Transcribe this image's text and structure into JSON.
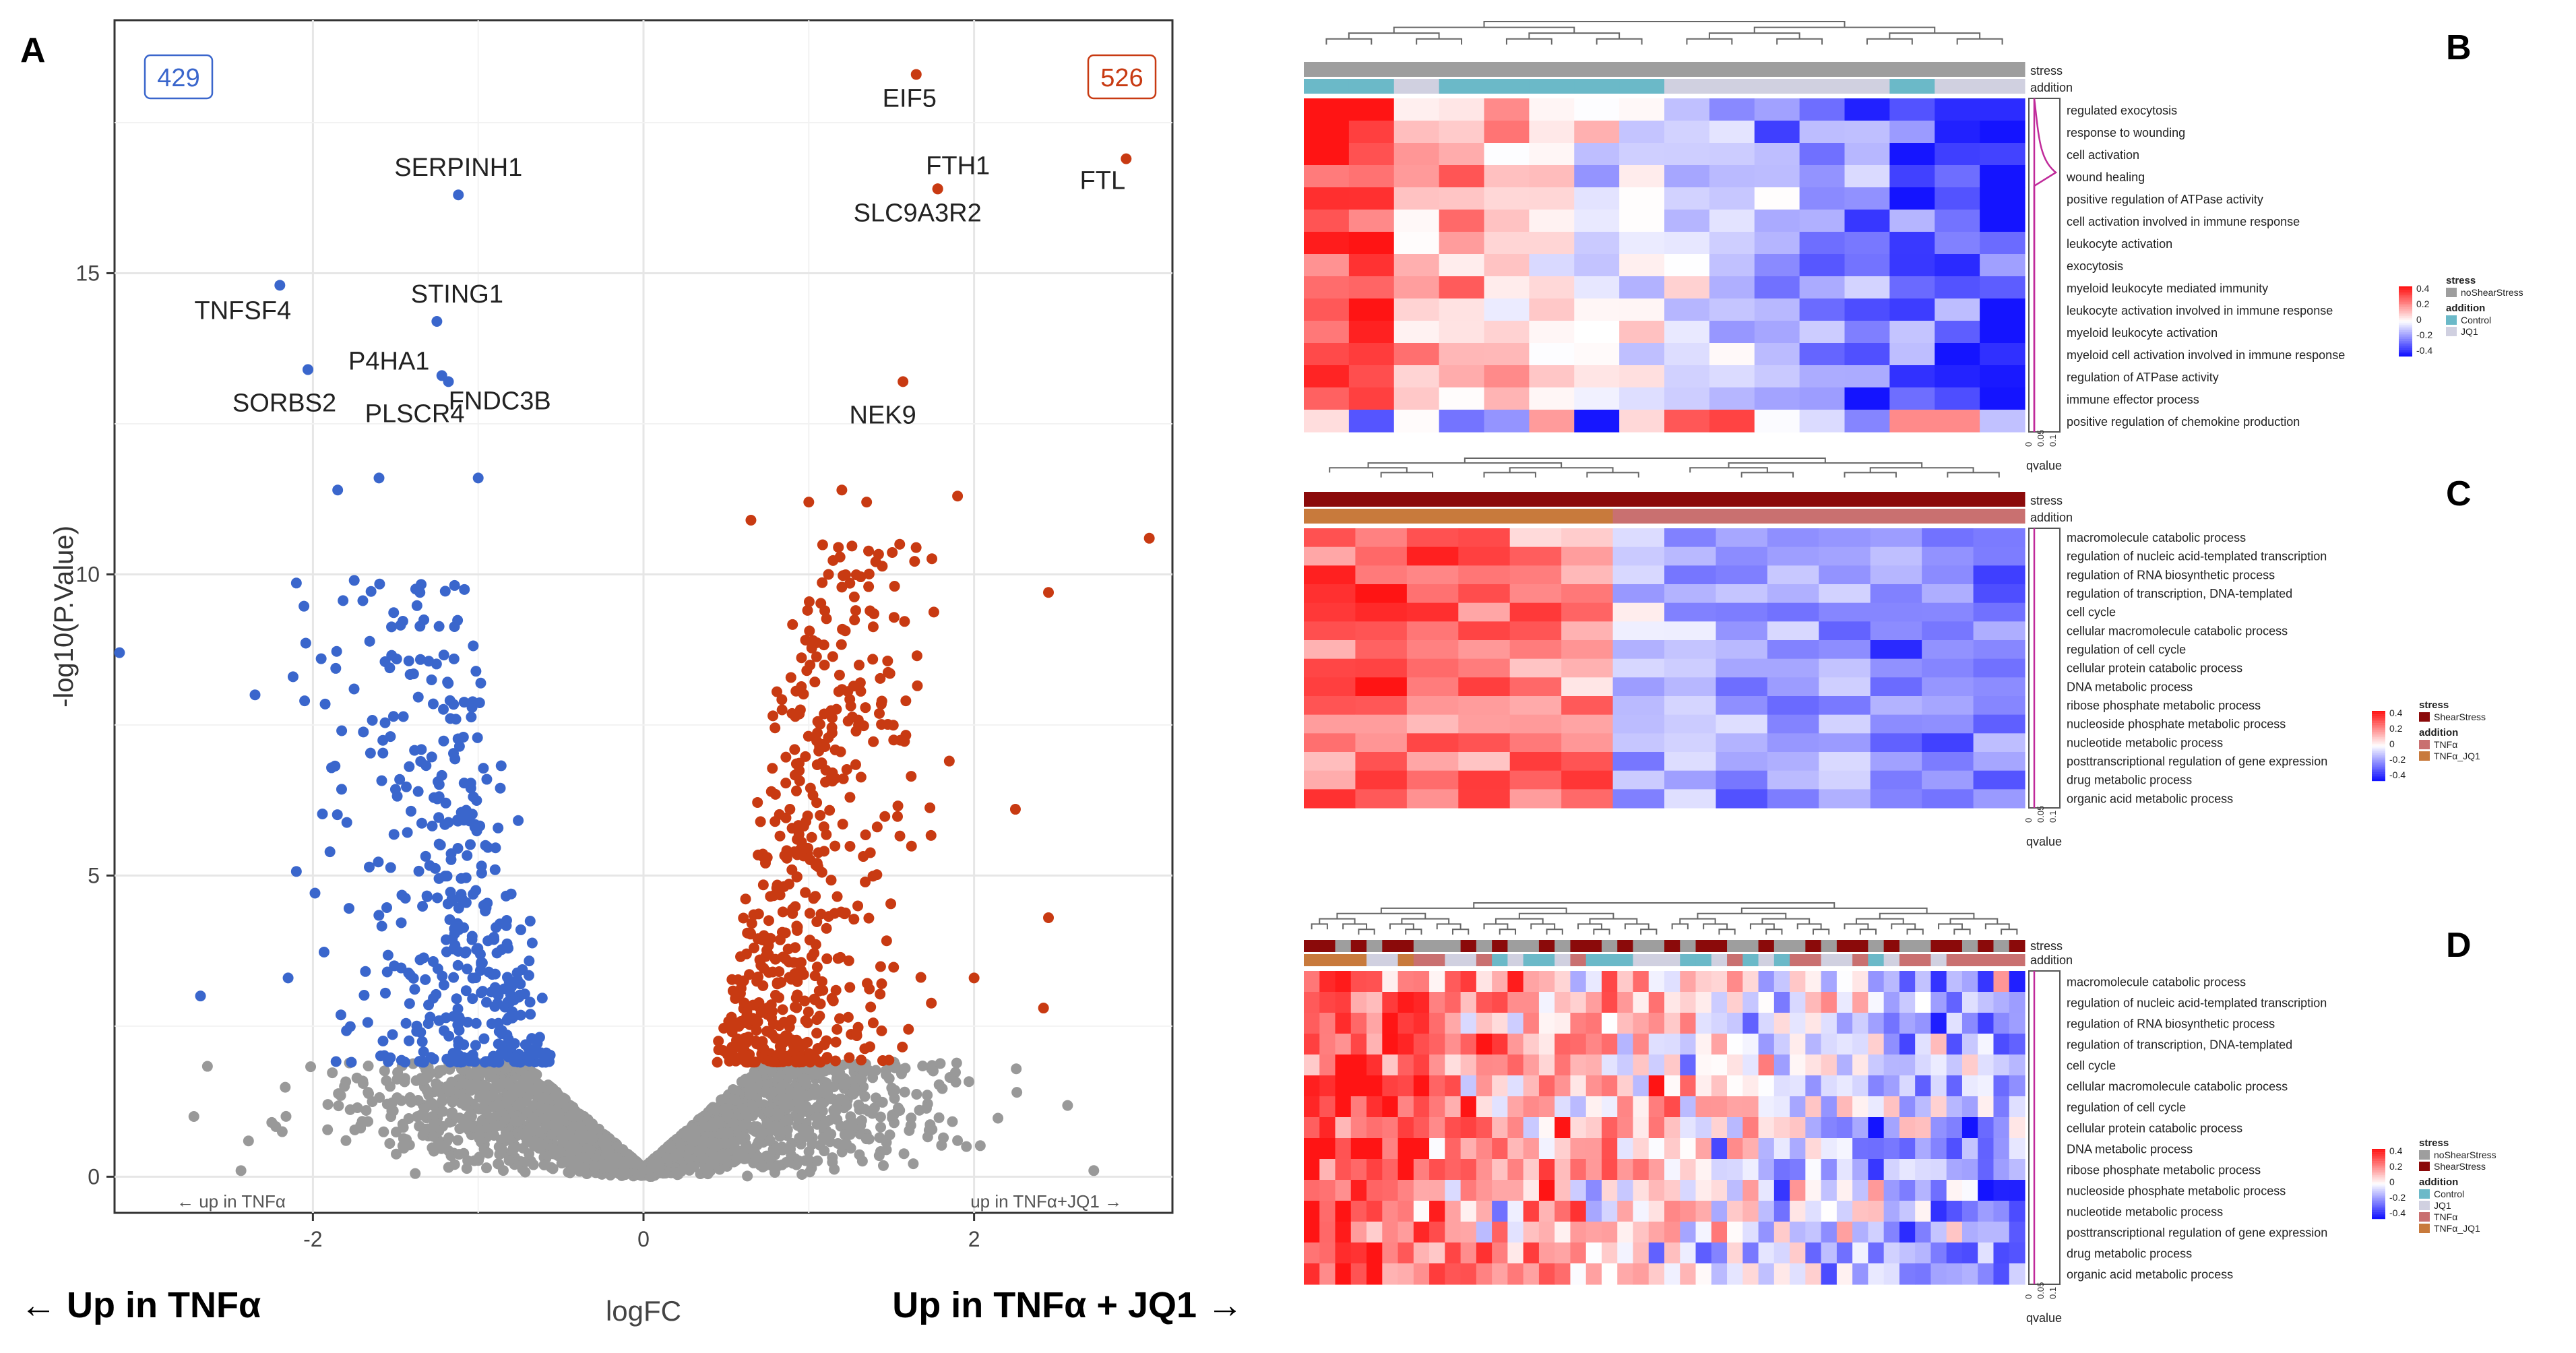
{
  "figure": {
    "panel_labels": [
      "A",
      "B",
      "C",
      "D"
    ]
  },
  "colors": {
    "up_jq1": "#c83a12",
    "up_tnfa": "#3a66cc",
    "ns": "#999999",
    "heat_high": "#ff0000",
    "heat_mid": "#ffffff",
    "heat_low": "#0000ff",
    "noShearStress": "#9e9e9e",
    "ShearStress": "#8b0a0a",
    "Control": "#6bb9c8",
    "JQ1": "#d0d0e0",
    "TNFa": "#c97070",
    "TNFa_JQ1": "#c87a3c"
  },
  "chart_data": [
    {
      "panel": "A",
      "type": "scatter",
      "title": "",
      "xlabel": "logFC",
      "ylabel": "-log10(P.Value)",
      "xlim": [
        -3.2,
        3.2
      ],
      "ylim": [
        -0.6,
        19.2
      ],
      "xticks": [
        -2,
        0,
        2
      ],
      "yticks": [
        0,
        5,
        10,
        15
      ],
      "count_down": "429",
      "count_up": "526",
      "corner_left": "← up in TNFα",
      "corner_right": "up in TNFα+JQ1 →",
      "bottom_left": "← Up in TNFα",
      "bottom_right": "Up in TNFα + JQ1 →",
      "labeled_points": [
        {
          "label": "EIF5",
          "x": 1.65,
          "y": 18.3,
          "dir": "up"
        },
        {
          "label": "FTH1",
          "x": 1.78,
          "y": 16.4,
          "dir": "up"
        },
        {
          "label": "FTL",
          "x": 2.92,
          "y": 16.9,
          "dir": "up"
        },
        {
          "label": "SLC9A3R2",
          "x": 1.78,
          "y": 16.4,
          "dir": "up"
        },
        {
          "label": "NEK9",
          "x": 1.57,
          "y": 13.2,
          "dir": "up"
        },
        {
          "label": "SERPINH1",
          "x": -1.12,
          "y": 16.3,
          "dir": "down"
        },
        {
          "label": "TNFSF4",
          "x": -2.2,
          "y": 14.8,
          "dir": "down"
        },
        {
          "label": "STING1",
          "x": -1.25,
          "y": 14.2,
          "dir": "down"
        },
        {
          "label": "P4HA1",
          "x": -2.03,
          "y": 13.4,
          "dir": "down"
        },
        {
          "label": "FNDC3B",
          "x": -1.22,
          "y": 13.3,
          "dir": "down"
        },
        {
          "label": "SORBS2",
          "x": -2.03,
          "y": 13.4,
          "dir": "down"
        },
        {
          "label": "PLSCR4",
          "x": -1.18,
          "y": 13.2,
          "dir": "down"
        }
      ],
      "extra_points": [
        {
          "x": 3.06,
          "y": 10.6,
          "dir": "up"
        },
        {
          "x": 2.45,
          "y": 9.7,
          "dir": "up"
        },
        {
          "x": 1.9,
          "y": 11.3,
          "dir": "up"
        },
        {
          "x": 1.35,
          "y": 11.2,
          "dir": "up"
        },
        {
          "x": 1.2,
          "y": 11.4,
          "dir": "up"
        },
        {
          "x": 2.25,
          "y": 6.1,
          "dir": "up"
        },
        {
          "x": 2.45,
          "y": 4.3,
          "dir": "up"
        },
        {
          "x": 2.42,
          "y": 2.8,
          "dir": "up"
        },
        {
          "x": 2.0,
          "y": 3.3,
          "dir": "up"
        },
        {
          "x": 1.85,
          "y": 6.9,
          "dir": "up"
        },
        {
          "x": 1.55,
          "y": 10.5,
          "dir": "up"
        },
        {
          "x": 1.0,
          "y": 11.2,
          "dir": "up"
        },
        {
          "x": 0.65,
          "y": 10.9,
          "dir": "up"
        },
        {
          "x": -3.17,
          "y": 8.7,
          "dir": "down"
        },
        {
          "x": -2.35,
          "y": 8.0,
          "dir": "down"
        },
        {
          "x": -2.12,
          "y": 8.3,
          "dir": "down"
        },
        {
          "x": -2.05,
          "y": 7.9,
          "dir": "down"
        },
        {
          "x": -1.95,
          "y": 8.6,
          "dir": "down"
        },
        {
          "x": -2.15,
          "y": 3.3,
          "dir": "down"
        },
        {
          "x": -2.68,
          "y": 3.0,
          "dir": "down"
        },
        {
          "x": -1.85,
          "y": 11.4,
          "dir": "down"
        },
        {
          "x": -1.6,
          "y": 11.6,
          "dir": "down"
        },
        {
          "x": -1.0,
          "y": 11.6,
          "dir": "down"
        },
        {
          "x": -1.75,
          "y": 9.9,
          "dir": "down"
        },
        {
          "x": -2.72,
          "y": 1.0,
          "dir": "ns"
        },
        {
          "x": -1.8,
          "y": 0.6,
          "dir": "ns"
        },
        {
          "x": 1.9,
          "y": 0.6,
          "dir": "ns"
        },
        {
          "x": 1.55,
          "y": 1.1,
          "dir": "ns"
        }
      ]
    },
    {
      "panel": "B",
      "type": "heatmap",
      "annotation_labels": [
        "stress",
        "addition"
      ],
      "row_labels": [
        "regulated exocytosis",
        "response to wounding",
        "cell activation",
        "wound healing",
        "positive regulation of ATPase activity",
        "cell activation involved in immune response",
        "leukocyte activation",
        "exocytosis",
        "myeloid leukocyte mediated immunity",
        "leukocyte activation involved in immune response",
        "myeloid leukocyte activation",
        "myeloid cell activation involved in immune response",
        "regulation of ATPase activity",
        "immune effector process",
        "positive regulation of chemokine production"
      ],
      "n_cols": 16,
      "qvalue_label": "qvalue",
      "qvalue_ticks": [
        "0",
        "0.05",
        "0.1"
      ],
      "legend_scale": [
        "0.4",
        "0.2",
        "0",
        "-0.2",
        "-0.4"
      ],
      "legend": [
        {
          "title": "stress",
          "items": [
            {
              "name": "noShearStress",
              "color": "#9e9e9e"
            }
          ]
        },
        {
          "title": "addition",
          "items": [
            {
              "name": "Control",
              "color": "#6bb9c8"
            },
            {
              "name": "JQ1",
              "color": "#d0d0e0"
            }
          ]
        }
      ]
    },
    {
      "panel": "C",
      "type": "heatmap",
      "annotation_labels": [
        "stress",
        "addition"
      ],
      "row_labels": [
        "macromolecule catabolic process",
        "regulation of nucleic acid-templated transcription",
        "regulation of RNA biosynthetic process",
        "regulation of transcription, DNA-templated",
        "cell cycle",
        "cellular macromolecule catabolic process",
        "regulation of cell cycle",
        "cellular protein catabolic process",
        "DNA metabolic process",
        "ribose phosphate metabolic process",
        "nucleoside phosphate metabolic process",
        "nucleotide metabolic process",
        "posttranscriptional regulation of gene expression",
        "drug metabolic process",
        "organic acid metabolic process"
      ],
      "n_cols": 14,
      "qvalue_label": "qvalue",
      "qvalue_ticks": [
        "0",
        "0.05",
        "0.1"
      ],
      "legend_scale": [
        "0.4",
        "0.2",
        "0",
        "-0.2",
        "-0.4"
      ],
      "legend": [
        {
          "title": "stress",
          "items": [
            {
              "name": "ShearStress",
              "color": "#8b0a0a"
            }
          ]
        },
        {
          "title": "addition",
          "items": [
            {
              "name": "TNFα",
              "color": "#c97070"
            },
            {
              "name": "TNFα_JQ1",
              "color": "#c87a3c"
            }
          ]
        }
      ]
    },
    {
      "panel": "D",
      "type": "heatmap",
      "annotation_labels": [
        "stress",
        "addition"
      ],
      "row_labels": [
        "macromolecule catabolic process",
        "regulation of nucleic acid-templated transcription",
        "regulation of RNA biosynthetic process",
        "regulation of transcription, DNA-templated",
        "cell cycle",
        "cellular macromolecule catabolic process",
        "regulation of cell cycle",
        "cellular protein catabolic process",
        "DNA metabolic process",
        "ribose phosphate metabolic process",
        "nucleoside phosphate metabolic process",
        "nucleotide metabolic process",
        "posttranscriptional regulation of gene expression",
        "drug metabolic process",
        "organic acid metabolic process"
      ],
      "n_cols": 46,
      "qvalue_label": "qvalue",
      "qvalue_ticks": [
        "0",
        "0.05",
        "0.1"
      ],
      "legend_scale": [
        "0.4",
        "0.2",
        "0",
        "-0.2",
        "-0.4"
      ],
      "legend": [
        {
          "title": "stress",
          "items": [
            {
              "name": "noShearStress",
              "color": "#9e9e9e"
            },
            {
              "name": "ShearStress",
              "color": "#8b0a0a"
            }
          ]
        },
        {
          "title": "addition",
          "items": [
            {
              "name": "Control",
              "color": "#6bb9c8"
            },
            {
              "name": "JQ1",
              "color": "#d0d0e0"
            },
            {
              "name": "TNFα",
              "color": "#c97070"
            },
            {
              "name": "TNFα_JQ1",
              "color": "#c87a3c"
            }
          ]
        }
      ]
    }
  ]
}
